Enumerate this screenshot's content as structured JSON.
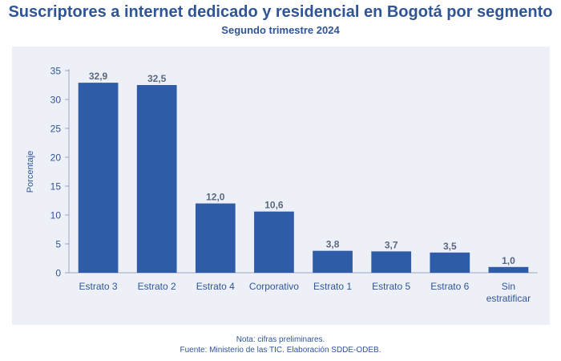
{
  "title": "Suscriptores a internet dedicado y residencial en Bogotá por segmento",
  "subtitle": "Segundo trimestre 2024",
  "footer": {
    "note": "Nota: cifras preliminares.",
    "source": "Fuente: Ministerio de las TIC. Elaboración SDDE-ODEB."
  },
  "colors": {
    "bar": "#2f5ca8",
    "text": "#2f5597",
    "panel": "#eef0f8"
  },
  "chart_data": {
    "type": "bar",
    "title": "Suscriptores a internet dedicado y residencial en Bogotá por segmento",
    "subtitle": "Segundo trimestre 2024",
    "xlabel": "",
    "ylabel": "Porcentaje",
    "categories": [
      "Estrato 3",
      "Estrato 2",
      "Estrato 4",
      "Corporativo",
      "Estrato 1",
      "Estrato 5",
      "Estrato 6",
      "Sin estratificar"
    ],
    "category_lines": [
      [
        "Estrato 3"
      ],
      [
        "Estrato 2"
      ],
      [
        "Estrato 4"
      ],
      [
        "Corporativo"
      ],
      [
        "Estrato 1"
      ],
      [
        "Estrato 5"
      ],
      [
        "Estrato 6"
      ],
      [
        "Sin",
        "estratificar"
      ]
    ],
    "values": [
      32.9,
      32.5,
      12.0,
      10.6,
      3.8,
      3.7,
      3.5,
      1.0
    ],
    "value_labels": [
      "32,9",
      "32,5",
      "12,0",
      "10,6",
      "3,8",
      "3,7",
      "3,5",
      "1,0"
    ],
    "yticks": [
      0,
      5,
      10,
      15,
      20,
      25,
      30,
      35
    ],
    "ylim": [
      0,
      35
    ],
    "grid": false,
    "legend": "none"
  }
}
